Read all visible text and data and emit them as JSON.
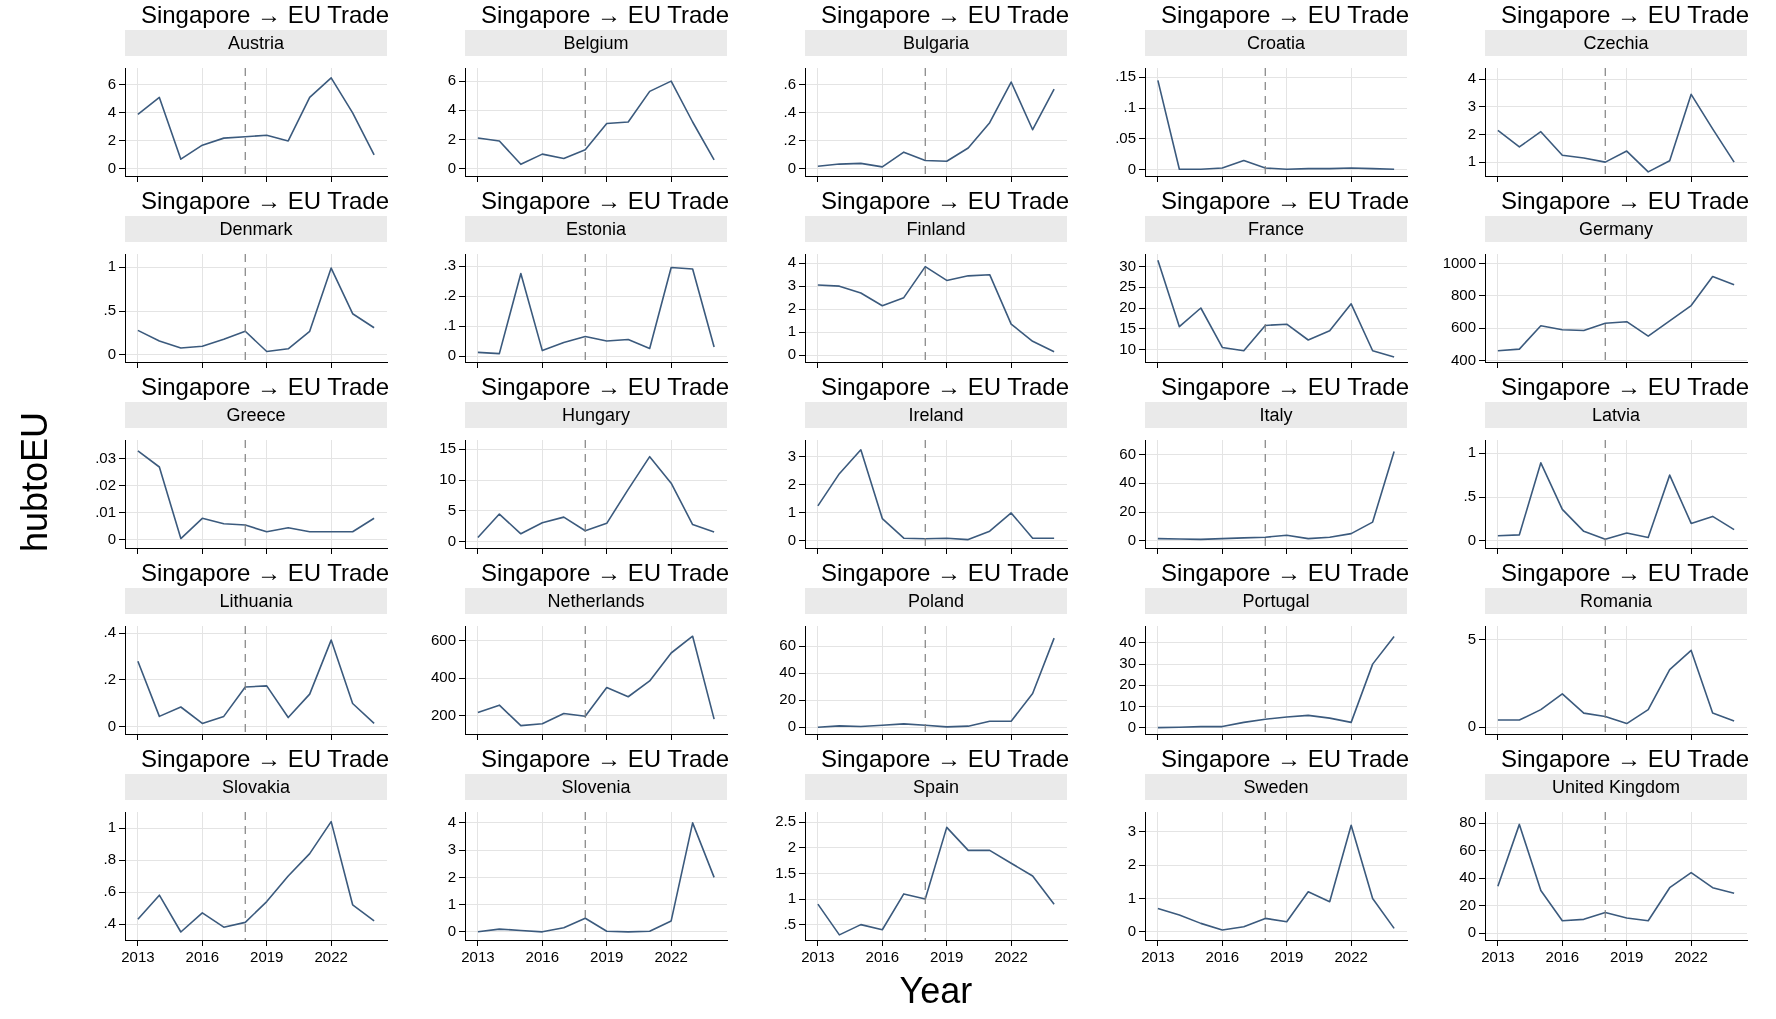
{
  "chart_data": [
    {
      "type": "line",
      "title": "Singapore → EU Trade",
      "subtitle": "Austria",
      "x": [
        2013,
        2014,
        2015,
        2016,
        2017,
        2018,
        2019,
        2020,
        2021,
        2022,
        2023,
        2024
      ],
      "xlim": [
        2012.4,
        2024.6
      ],
      "xticks": [
        2013,
        2016,
        2019,
        2022
      ],
      "ylim": [
        -0.5,
        7.2
      ],
      "yticks": [
        0,
        2,
        4,
        6
      ],
      "grid": true,
      "tick_labels": "y",
      "ref_lines": [
        {
          "axis": "x",
          "value": 2018,
          "line_style": "dashed",
          "color": "#808080"
        }
      ],
      "color": "#3b5a7d",
      "values": [
        3.9,
        5.1,
        0.7,
        1.7,
        2.2,
        2.3,
        2.4,
        2.0,
        5.1,
        6.5,
        4.0,
        1.0
      ]
    },
    {
      "type": "line",
      "title": "Singapore → EU Trade",
      "subtitle": "Belgium",
      "x": [
        2013,
        2014,
        2015,
        2016,
        2017,
        2018,
        2019,
        2020,
        2021,
        2022,
        2023,
        2024
      ],
      "xlim": [
        2012.4,
        2024.6
      ],
      "xticks": [
        2013,
        2016,
        2019,
        2022
      ],
      "ylim": [
        -0.5,
        6.9
      ],
      "yticks": [
        0,
        2,
        4,
        6
      ],
      "grid": true,
      "tick_labels": "y",
      "ref_lines": [
        {
          "axis": "x",
          "value": 2018,
          "line_style": "dashed",
          "color": "#808080"
        }
      ],
      "color": "#3b5a7d",
      "values": [
        2.1,
        1.9,
        0.3,
        1.0,
        0.7,
        1.3,
        3.1,
        3.2,
        5.3,
        6.0,
        3.2,
        0.6
      ]
    },
    {
      "type": "line",
      "title": "Singapore → EU Trade",
      "subtitle": "Bulgaria",
      "x": [
        2013,
        2014,
        2015,
        2016,
        2017,
        2018,
        2019,
        2020,
        2021,
        2022,
        2023,
        2024
      ],
      "xlim": [
        2012.4,
        2024.6
      ],
      "xticks": [
        2013,
        2016,
        2019,
        2022
      ],
      "ylim": [
        -0.05,
        0.72
      ],
      "yticks": [
        {
          "value": 0,
          "label": "0"
        },
        {
          "value": 0.2,
          "label": ".2"
        },
        {
          "value": 0.4,
          "label": ".4"
        },
        {
          "value": 0.6,
          "label": ".6"
        }
      ],
      "grid": true,
      "tick_labels": "y",
      "ref_lines": [
        {
          "axis": "x",
          "value": 2018,
          "line_style": "dashed",
          "color": "#808080"
        }
      ],
      "color": "#3b5a7d",
      "values": [
        0.02,
        0.035,
        0.04,
        0.015,
        0.12,
        0.06,
        0.055,
        0.15,
        0.33,
        0.62,
        0.28,
        0.57
      ]
    },
    {
      "type": "line",
      "title": "Singapore → EU Trade",
      "subtitle": "Croatia",
      "x": [
        2013,
        2014,
        2015,
        2016,
        2017,
        2018,
        2019,
        2020,
        2021,
        2022,
        2023,
        2024
      ],
      "xlim": [
        2012.4,
        2024.6
      ],
      "xticks": [
        2013,
        2016,
        2019,
        2022
      ],
      "ylim": [
        -0.01,
        0.165
      ],
      "yticks": [
        {
          "value": 0,
          "label": "0"
        },
        {
          "value": 0.05,
          "label": ".05"
        },
        {
          "value": 0.1,
          "label": ".1"
        },
        {
          "value": 0.15,
          "label": ".15"
        }
      ],
      "grid": true,
      "tick_labels": "y",
      "ref_lines": [
        {
          "axis": "x",
          "value": 2018,
          "line_style": "dashed",
          "color": "#808080"
        }
      ],
      "color": "#3b5a7d",
      "values": [
        0.145,
        0.001,
        0.001,
        0.003,
        0.015,
        0.003,
        0.001,
        0.002,
        0.002,
        0.003,
        0.002,
        0.001
      ]
    },
    {
      "type": "line",
      "title": "Singapore → EU Trade",
      "subtitle": "Czechia",
      "x": [
        2013,
        2014,
        2015,
        2016,
        2017,
        2018,
        2019,
        2020,
        2021,
        2022,
        2023,
        2024
      ],
      "xlim": [
        2012.4,
        2024.6
      ],
      "xticks": [
        2013,
        2016,
        2019,
        2022
      ],
      "ylim": [
        0.5,
        4.4
      ],
      "yticks": [
        1,
        2,
        3,
        4
      ],
      "grid": true,
      "tick_labels": "y",
      "ref_lines": [
        {
          "axis": "x",
          "value": 2018,
          "line_style": "dashed",
          "color": "#808080"
        }
      ],
      "color": "#3b5a7d",
      "values": [
        2.15,
        1.55,
        2.1,
        1.25,
        1.15,
        1.0,
        1.4,
        0.65,
        1.05,
        3.45,
        2.2,
        1.0
      ]
    },
    {
      "type": "line",
      "title": "Singapore → EU Trade",
      "subtitle": "Denmark",
      "x": [
        2013,
        2014,
        2015,
        2016,
        2017,
        2018,
        2019,
        2020,
        2021,
        2022,
        2023,
        2024
      ],
      "xlim": [
        2012.4,
        2024.6
      ],
      "xticks": [
        2013,
        2016,
        2019,
        2022
      ],
      "ylim": [
        -0.08,
        1.15
      ],
      "yticks": [
        {
          "value": 0,
          "label": "0"
        },
        {
          "value": 0.5,
          "label": ".5"
        },
        {
          "value": 1,
          "label": "1"
        }
      ],
      "grid": true,
      "tick_labels": "y",
      "ref_lines": [
        {
          "axis": "x",
          "value": 2018,
          "line_style": "dashed",
          "color": "#808080"
        }
      ],
      "color": "#3b5a7d",
      "values": [
        0.28,
        0.16,
        0.08,
        0.1,
        0.18,
        0.27,
        0.04,
        0.07,
        0.27,
        0.99,
        0.47,
        0.31
      ]
    },
    {
      "type": "line",
      "title": "Singapore → EU Trade",
      "subtitle": "Estonia",
      "x": [
        2013,
        2014,
        2015,
        2016,
        2017,
        2018,
        2019,
        2020,
        2021,
        2022,
        2023,
        2024
      ],
      "xlim": [
        2012.4,
        2024.6
      ],
      "xticks": [
        2013,
        2016,
        2019,
        2022
      ],
      "ylim": [
        -0.02,
        0.34
      ],
      "yticks": [
        {
          "value": 0,
          "label": "0"
        },
        {
          "value": 0.1,
          "label": ".1"
        },
        {
          "value": 0.2,
          "label": ".2"
        },
        {
          "value": 0.3,
          "label": ".3"
        }
      ],
      "grid": true,
      "tick_labels": "y",
      "ref_lines": [
        {
          "axis": "x",
          "value": 2018,
          "line_style": "dashed",
          "color": "#808080"
        }
      ],
      "color": "#3b5a7d",
      "values": [
        0.012,
        0.008,
        0.275,
        0.018,
        0.045,
        0.065,
        0.05,
        0.055,
        0.025,
        0.295,
        0.29,
        0.03
      ]
    },
    {
      "type": "line",
      "title": "Singapore → EU Trade",
      "subtitle": "Finland",
      "x": [
        2013,
        2014,
        2015,
        2016,
        2017,
        2018,
        2019,
        2020,
        2021,
        2022,
        2023,
        2024
      ],
      "xlim": [
        2012.4,
        2024.6
      ],
      "xticks": [
        2013,
        2016,
        2019,
        2022
      ],
      "ylim": [
        -0.3,
        4.4
      ],
      "yticks": [
        0,
        1,
        2,
        3,
        4
      ],
      "grid": true,
      "tick_labels": "y",
      "ref_lines": [
        {
          "axis": "x",
          "value": 2018,
          "line_style": "dashed",
          "color": "#808080"
        }
      ],
      "color": "#3b5a7d",
      "values": [
        3.05,
        3.0,
        2.7,
        2.15,
        2.5,
        3.85,
        3.25,
        3.45,
        3.5,
        1.35,
        0.6,
        0.15
      ]
    },
    {
      "type": "line",
      "title": "Singapore → EU Trade",
      "subtitle": "France",
      "x": [
        2013,
        2014,
        2015,
        2016,
        2017,
        2018,
        2019,
        2020,
        2021,
        2022,
        2023,
        2024
      ],
      "xlim": [
        2012.4,
        2024.6
      ],
      "xticks": [
        2013,
        2016,
        2019,
        2022
      ],
      "ylim": [
        7,
        33
      ],
      "yticks": [
        10,
        15,
        20,
        25,
        30
      ],
      "grid": true,
      "tick_labels": "y",
      "ref_lines": [
        {
          "axis": "x",
          "value": 2018,
          "line_style": "dashed",
          "color": "#808080"
        }
      ],
      "color": "#3b5a7d",
      "values": [
        31.5,
        15.5,
        20,
        10.5,
        9.7,
        15.8,
        16.1,
        12.3,
        14.5,
        21,
        9.7,
        8.2
      ]
    },
    {
      "type": "line",
      "title": "Singapore → EU Trade",
      "subtitle": "Germany",
      "x": [
        2013,
        2014,
        2015,
        2016,
        2017,
        2018,
        2019,
        2020,
        2021,
        2022,
        2023,
        2024
      ],
      "xlim": [
        2012.4,
        2024.6
      ],
      "xticks": [
        2013,
        2016,
        2019,
        2022
      ],
      "ylim": [
        390,
        1060
      ],
      "yticks": [
        400,
        600,
        800,
        1000
      ],
      "grid": true,
      "tick_labels": "y",
      "ref_lines": [
        {
          "axis": "x",
          "value": 2018,
          "line_style": "dashed",
          "color": "#808080"
        }
      ],
      "color": "#3b5a7d",
      "values": [
        460,
        470,
        615,
        590,
        585,
        630,
        640,
        550,
        645,
        740,
        920,
        870
      ]
    },
    {
      "type": "line",
      "title": "Singapore → EU Trade",
      "subtitle": "Greece",
      "ylabel": "hubtoEU",
      "x": [
        2013,
        2014,
        2015,
        2016,
        2017,
        2018,
        2019,
        2020,
        2021,
        2022,
        2023,
        2024
      ],
      "xlim": [
        2012.4,
        2024.6
      ],
      "xticks": [
        2013,
        2016,
        2019,
        2022
      ],
      "ylim": [
        -0.003,
        0.037
      ],
      "yticks": [
        {
          "value": 0,
          "label": "0"
        },
        {
          "value": 0.01,
          "label": ".01"
        },
        {
          "value": 0.02,
          "label": ".02"
        },
        {
          "value": 0.03,
          "label": ".03"
        }
      ],
      "grid": true,
      "tick_labels": "y",
      "ref_lines": [
        {
          "axis": "x",
          "value": 2018,
          "line_style": "dashed",
          "color": "#808080"
        }
      ],
      "color": "#3b5a7d",
      "values": [
        0.033,
        0.027,
        0.0005,
        0.008,
        0.006,
        0.0055,
        0.003,
        0.0045,
        0.003,
        0.003,
        0.003,
        0.008
      ]
    },
    {
      "type": "line",
      "title": "Singapore → EU Trade",
      "subtitle": "Hungary",
      "x": [
        2013,
        2014,
        2015,
        2016,
        2017,
        2018,
        2019,
        2020,
        2021,
        2022,
        2023,
        2024
      ],
      "xlim": [
        2012.4,
        2024.6
      ],
      "xticks": [
        2013,
        2016,
        2019,
        2022
      ],
      "ylim": [
        -1,
        16.5
      ],
      "yticks": [
        0,
        5,
        10,
        15
      ],
      "grid": true,
      "tick_labels": "y",
      "ref_lines": [
        {
          "axis": "x",
          "value": 2018,
          "line_style": "dashed",
          "color": "#808080"
        }
      ],
      "color": "#3b5a7d",
      "values": [
        0.7,
        4.5,
        1.3,
        3.1,
        4.0,
        1.8,
        3.0,
        8.5,
        13.8,
        9.5,
        2.8,
        1.6
      ]
    },
    {
      "type": "line",
      "title": "Singapore → EU Trade",
      "subtitle": "Ireland",
      "x": [
        2013,
        2014,
        2015,
        2016,
        2017,
        2018,
        2019,
        2020,
        2021,
        2022,
        2023,
        2024
      ],
      "xlim": [
        2012.4,
        2024.6
      ],
      "xticks": [
        2013,
        2016,
        2019,
        2022
      ],
      "ylim": [
        -0.25,
        3.6
      ],
      "yticks": [
        0,
        1,
        2,
        3
      ],
      "grid": true,
      "tick_labels": "y",
      "ref_lines": [
        {
          "axis": "x",
          "value": 2018,
          "line_style": "dashed",
          "color": "#808080"
        }
      ],
      "color": "#3b5a7d",
      "values": [
        1.25,
        2.4,
        3.25,
        0.8,
        0.1,
        0.08,
        0.1,
        0.05,
        0.35,
        1.0,
        0.1,
        0.1
      ]
    },
    {
      "type": "line",
      "title": "Singapore → EU Trade",
      "subtitle": "Italy",
      "x": [
        2013,
        2014,
        2015,
        2016,
        2017,
        2018,
        2019,
        2020,
        2021,
        2022,
        2023,
        2024
      ],
      "xlim": [
        2012.4,
        2024.6
      ],
      "xticks": [
        2013,
        2016,
        2019,
        2022
      ],
      "ylim": [
        -5,
        70
      ],
      "yticks": [
        0,
        20,
        40,
        60
      ],
      "grid": true,
      "tick_labels": "y",
      "ref_lines": [
        {
          "axis": "x",
          "value": 2018,
          "line_style": "dashed",
          "color": "#808080"
        }
      ],
      "color": "#3b5a7d",
      "values": [
        1.5,
        1.2,
        1.0,
        1.5,
        2,
        2.5,
        3.8,
        1.5,
        2.5,
        5,
        13,
        62
      ]
    },
    {
      "type": "line",
      "title": "Singapore → EU Trade",
      "subtitle": "Latvia",
      "x": [
        2013,
        2014,
        2015,
        2016,
        2017,
        2018,
        2019,
        2020,
        2021,
        2022,
        2023,
        2024
      ],
      "xlim": [
        2012.4,
        2024.6
      ],
      "xticks": [
        2013,
        2016,
        2019,
        2022
      ],
      "ylim": [
        -0.08,
        1.15
      ],
      "yticks": [
        {
          "value": 0,
          "label": "0"
        },
        {
          "value": 0.5,
          "label": ".5"
        },
        {
          "value": 1,
          "label": "1"
        }
      ],
      "grid": true,
      "tick_labels": "y",
      "ref_lines": [
        {
          "axis": "x",
          "value": 2018,
          "line_style": "dashed",
          "color": "#808080"
        }
      ],
      "color": "#3b5a7d",
      "values": [
        0.06,
        0.07,
        0.89,
        0.36,
        0.11,
        0.02,
        0.09,
        0.04,
        0.75,
        0.2,
        0.28,
        0.13
      ]
    },
    {
      "type": "line",
      "title": "Singapore → EU Trade",
      "subtitle": "Lithuania",
      "x": [
        2013,
        2014,
        2015,
        2016,
        2017,
        2018,
        2019,
        2020,
        2021,
        2022,
        2023,
        2024
      ],
      "xlim": [
        2012.4,
        2024.6
      ],
      "xticks": [
        2013,
        2016,
        2019,
        2022
      ],
      "ylim": [
        -0.03,
        0.43
      ],
      "yticks": [
        {
          "value": 0,
          "label": "0"
        },
        {
          "value": 0.2,
          "label": ".2"
        },
        {
          "value": 0.4,
          "label": ".4"
        }
      ],
      "grid": true,
      "tick_labels": "y",
      "ref_lines": [
        {
          "axis": "x",
          "value": 2018,
          "line_style": "dashed",
          "color": "#808080"
        }
      ],
      "color": "#3b5a7d",
      "values": [
        0.28,
        0.045,
        0.085,
        0.015,
        0.045,
        0.17,
        0.175,
        0.04,
        0.14,
        0.37,
        0.1,
        0.015
      ]
    },
    {
      "type": "line",
      "title": "Singapore → EU Trade",
      "subtitle": "Netherlands",
      "x": [
        2013,
        2014,
        2015,
        2016,
        2017,
        2018,
        2019,
        2020,
        2021,
        2022,
        2023,
        2024
      ],
      "xlim": [
        2012.4,
        2024.6
      ],
      "xticks": [
        2013,
        2016,
        2019,
        2022
      ],
      "ylim": [
        100,
        680
      ],
      "yticks": [
        200,
        400,
        600
      ],
      "grid": true,
      "tick_labels": "y",
      "ref_lines": [
        {
          "axis": "x",
          "value": 2018,
          "line_style": "dashed",
          "color": "#808080"
        }
      ],
      "color": "#3b5a7d",
      "values": [
        215,
        255,
        145,
        155,
        210,
        195,
        350,
        300,
        385,
        535,
        625,
        180
      ]
    },
    {
      "type": "line",
      "title": "Singapore → EU Trade",
      "subtitle": "Poland",
      "x": [
        2013,
        2014,
        2015,
        2016,
        2017,
        2018,
        2019,
        2020,
        2021,
        2022,
        2023,
        2024
      ],
      "xlim": [
        2012.4,
        2024.6
      ],
      "xticks": [
        2013,
        2016,
        2019,
        2022
      ],
      "ylim": [
        -5,
        75
      ],
      "yticks": [
        0,
        20,
        40,
        60
      ],
      "grid": true,
      "tick_labels": "y",
      "ref_lines": [
        {
          "axis": "x",
          "value": 2018,
          "line_style": "dashed",
          "color": "#808080"
        }
      ],
      "color": "#3b5a7d",
      "values": [
        0,
        1,
        0.5,
        1.5,
        2.5,
        1.5,
        0.3,
        0.8,
        4.5,
        4.5,
        25,
        66
      ]
    },
    {
      "type": "line",
      "title": "Singapore → EU Trade",
      "subtitle": "Portugal",
      "x": [
        2013,
        2014,
        2015,
        2016,
        2017,
        2018,
        2019,
        2020,
        2021,
        2022,
        2023,
        2024
      ],
      "xlim": [
        2012.4,
        2024.6
      ],
      "xticks": [
        2013,
        2016,
        2019,
        2022
      ],
      "ylim": [
        -3,
        48
      ],
      "yticks": [
        0,
        10,
        20,
        30,
        40
      ],
      "grid": true,
      "tick_labels": "y",
      "ref_lines": [
        {
          "axis": "x",
          "value": 2018,
          "line_style": "dashed",
          "color": "#808080"
        }
      ],
      "color": "#3b5a7d",
      "values": [
        0,
        0.2,
        0.5,
        0.5,
        2.5,
        4,
        5,
        5.8,
        4.5,
        2.5,
        30,
        43
      ]
    },
    {
      "type": "line",
      "title": "Singapore → EU Trade",
      "subtitle": "Romania",
      "x": [
        2013,
        2014,
        2015,
        2016,
        2017,
        2018,
        2019,
        2020,
        2021,
        2022,
        2023,
        2024
      ],
      "xlim": [
        2012.4,
        2024.6
      ],
      "xticks": [
        2013,
        2016,
        2019,
        2022
      ],
      "ylim": [
        -0.4,
        5.8
      ],
      "yticks": [
        0,
        5
      ],
      "grid": true,
      "tick_labels": "y",
      "ref_lines": [
        {
          "axis": "x",
          "value": 2018,
          "line_style": "dashed",
          "color": "#808080"
        }
      ],
      "color": "#3b5a7d",
      "values": [
        0.4,
        0.4,
        1.0,
        1.9,
        0.8,
        0.6,
        0.2,
        1.0,
        3.3,
        4.4,
        0.8,
        0.35
      ]
    },
    {
      "type": "line",
      "title": "Singapore → EU Trade",
      "subtitle": "Slovakia",
      "x": [
        2013,
        2014,
        2015,
        2016,
        2017,
        2018,
        2019,
        2020,
        2021,
        2022,
        2023,
        2024
      ],
      "xlim": [
        2012.4,
        2024.6
      ],
      "xticks": [
        2013,
        2016,
        2019,
        2022
      ],
      "ylim": [
        0.3,
        1.1
      ],
      "yticks": [
        {
          "value": 0.4,
          "label": ".4"
        },
        {
          "value": 0.6,
          "label": ".6"
        },
        {
          "value": 0.8,
          "label": ".8"
        },
        {
          "value": 1,
          "label": "1"
        }
      ],
      "grid": true,
      "ref_lines": [
        {
          "axis": "x",
          "value": 2018,
          "line_style": "dashed",
          "color": "#808080"
        }
      ],
      "color": "#3b5a7d",
      "values": [
        0.43,
        0.58,
        0.35,
        0.47,
        0.38,
        0.41,
        0.54,
        0.7,
        0.84,
        1.04,
        0.52,
        0.42
      ]
    },
    {
      "type": "line",
      "title": "Singapore → EU Trade",
      "subtitle": "Slovenia",
      "x": [
        2013,
        2014,
        2015,
        2016,
        2017,
        2018,
        2019,
        2020,
        2021,
        2022,
        2023,
        2024
      ],
      "xlim": [
        2012.4,
        2024.6
      ],
      "xticks": [
        2013,
        2016,
        2019,
        2022
      ],
      "ylim": [
        -0.3,
        4.4
      ],
      "yticks": [
        0,
        1,
        2,
        3,
        4
      ],
      "grid": true,
      "ref_lines": [
        {
          "axis": "x",
          "value": 2018,
          "line_style": "dashed",
          "color": "#808080"
        }
      ],
      "color": "#3b5a7d",
      "values": [
        0,
        0.1,
        0.05,
        0,
        0.15,
        0.5,
        0.02,
        0,
        0.02,
        0.4,
        4.0,
        2.0
      ]
    },
    {
      "type": "line",
      "title": "Singapore → EU Trade",
      "subtitle": "Spain",
      "xlabel": "Year",
      "x": [
        2013,
        2014,
        2015,
        2016,
        2017,
        2018,
        2019,
        2020,
        2021,
        2022,
        2023,
        2024
      ],
      "xlim": [
        2012.4,
        2024.6
      ],
      "xticks": [
        2013,
        2016,
        2019,
        2022
      ],
      "ylim": [
        0.2,
        2.7
      ],
      "yticks": [
        {
          "value": 0.5,
          "label": ".5"
        },
        {
          "value": 1,
          "label": "1"
        },
        {
          "value": 1.5,
          "label": "1.5"
        },
        {
          "value": 2,
          "label": "2"
        },
        {
          "value": 2.5,
          "label": "2.5"
        }
      ],
      "grid": true,
      "ref_lines": [
        {
          "axis": "x",
          "value": 2018,
          "line_style": "dashed",
          "color": "#808080"
        }
      ],
      "color": "#3b5a7d",
      "values": [
        0.9,
        0.3,
        0.5,
        0.4,
        1.1,
        1.0,
        2.4,
        1.95,
        1.95,
        1.7,
        1.45,
        0.9
      ]
    },
    {
      "type": "line",
      "title": "Singapore → EU Trade",
      "subtitle": "Sweden",
      "x": [
        2013,
        2014,
        2015,
        2016,
        2017,
        2018,
        2019,
        2020,
        2021,
        2022,
        2023,
        2024
      ],
      "xlim": [
        2012.4,
        2024.6
      ],
      "xticks": [
        2013,
        2016,
        2019,
        2022
      ],
      "ylim": [
        -0.25,
        3.6
      ],
      "yticks": [
        0,
        1,
        2,
        3
      ],
      "grid": true,
      "ref_lines": [
        {
          "axis": "x",
          "value": 2018,
          "line_style": "dashed",
          "color": "#808080"
        }
      ],
      "color": "#3b5a7d",
      "values": [
        0.7,
        0.5,
        0.25,
        0.05,
        0.15,
        0.4,
        0.3,
        1.2,
        0.9,
        3.2,
        1.0,
        0.1
      ]
    },
    {
      "type": "line",
      "title": "Singapore → EU Trade",
      "subtitle": "United Kingdom",
      "x": [
        2013,
        2014,
        2015,
        2016,
        2017,
        2018,
        2019,
        2020,
        2021,
        2022,
        2023,
        2024
      ],
      "xlim": [
        2012.4,
        2024.6
      ],
      "xticks": [
        2013,
        2016,
        2019,
        2022
      ],
      "ylim": [
        -5,
        88
      ],
      "yticks": [
        0,
        20,
        40,
        60,
        80
      ],
      "grid": true,
      "ref_lines": [
        {
          "axis": "x",
          "value": 2018,
          "line_style": "dashed",
          "color": "#808080"
        }
      ],
      "color": "#3b5a7d",
      "values": [
        34,
        79,
        31,
        9,
        10,
        15,
        11,
        9,
        33,
        44,
        33,
        29
      ]
    }
  ]
}
